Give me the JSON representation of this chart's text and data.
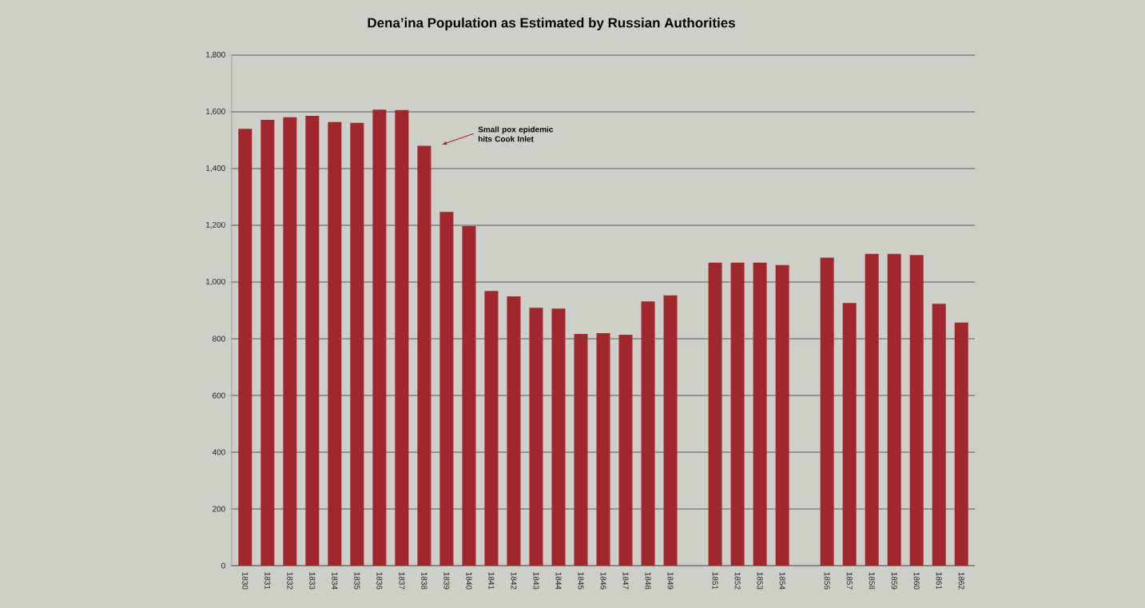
{
  "chart_data": {
    "type": "bar",
    "title": "Dena’ina Population as Estimated by Russian Authorities",
    "categories": [
      "1830",
      "1831",
      "1832",
      "1833",
      "1834",
      "1835",
      "1836",
      "1837",
      "1838",
      "1839",
      "1840",
      "1841",
      "1842",
      "1843",
      "1844",
      "1845",
      "1846",
      "1847",
      "1848",
      "1849",
      null,
      "1851",
      "1852",
      "1853",
      "1854",
      null,
      "1856",
      "1857",
      "1858",
      "1859",
      "1860",
      "1861",
      "1862"
    ],
    "values": [
      1540,
      1572,
      1581,
      1586,
      1564,
      1561,
      1608,
      1606,
      1480,
      1247,
      1197,
      968,
      949,
      909,
      906,
      817,
      820,
      814,
      932,
      953,
      null,
      1068,
      1068,
      1068,
      1060,
      null,
      1086,
      926,
      1099,
      1099,
      1095,
      923,
      857
    ],
    "color": "#a0282c",
    "ylim": [
      0,
      1800
    ],
    "yticks": [
      0,
      200,
      400,
      600,
      800,
      {
        "value": 1000,
        "label": "1,000"
      },
      {
        "value": 1200,
        "label": "1,200"
      },
      {
        "value": 1400,
        "label": "1,400"
      },
      {
        "value": 1600,
        "label": "1,600"
      },
      {
        "value": 1800,
        "label": "1,800"
      }
    ],
    "grid": "y",
    "annotations": [
      "Small pox epidemic hits Cook Inlet"
    ]
  }
}
